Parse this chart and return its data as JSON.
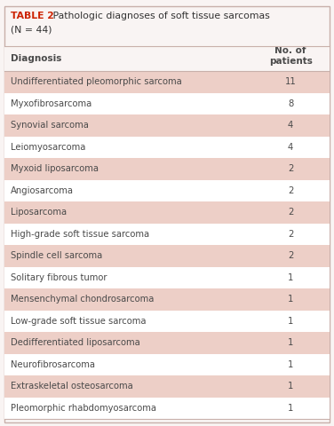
{
  "title_bold": "TABLE 2",
  "title_rest": " Pathologic diagnoses of soft tissue sarcomas",
  "subtitle": "(N = 44)",
  "col1_header": "Diagnosis",
  "col2_header": "No. of\npatients",
  "rows": [
    [
      "Undifferentiated pleomorphic sarcoma",
      "11"
    ],
    [
      "Myxofibrosarcoma",
      "8"
    ],
    [
      "Synovial sarcoma",
      "4"
    ],
    [
      "Leiomyosarcoma",
      "4"
    ],
    [
      "Myxoid liposarcoma",
      "2"
    ],
    [
      "Angiosarcoma",
      "2"
    ],
    [
      "Liposarcoma",
      "2"
    ],
    [
      "High-grade soft tissue sarcoma",
      "2"
    ],
    [
      "Spindle cell sarcoma",
      "2"
    ],
    [
      "Solitary fibrous tumor",
      "1"
    ],
    [
      "Mensenchymal chondrosarcoma",
      "1"
    ],
    [
      "Low-grade soft tissue sarcoma",
      "1"
    ],
    [
      "Dedifferentiated liposarcoma",
      "1"
    ],
    [
      "Neurofibrosarcoma",
      "1"
    ],
    [
      "Extraskeletal osteosarcoma",
      "1"
    ],
    [
      "Pleomorphic rhabdomyosarcoma",
      "1"
    ]
  ],
  "shaded_rows": [
    0,
    2,
    4,
    6,
    8,
    10,
    12,
    14
  ],
  "shaded_color": "#edcfc7",
  "white_color": "#ffffff",
  "bg_color": "#f9f4f3",
  "border_color": "#c8b0aa",
  "text_color": "#4a4a4a",
  "title_color": "#cc2200",
  "title_normal_color": "#333333",
  "figsize": [
    3.76,
    4.8
  ],
  "dpi": 100,
  "title_fontsize": 7.8,
  "header_fontsize": 7.5,
  "row_fontsize": 7.2
}
